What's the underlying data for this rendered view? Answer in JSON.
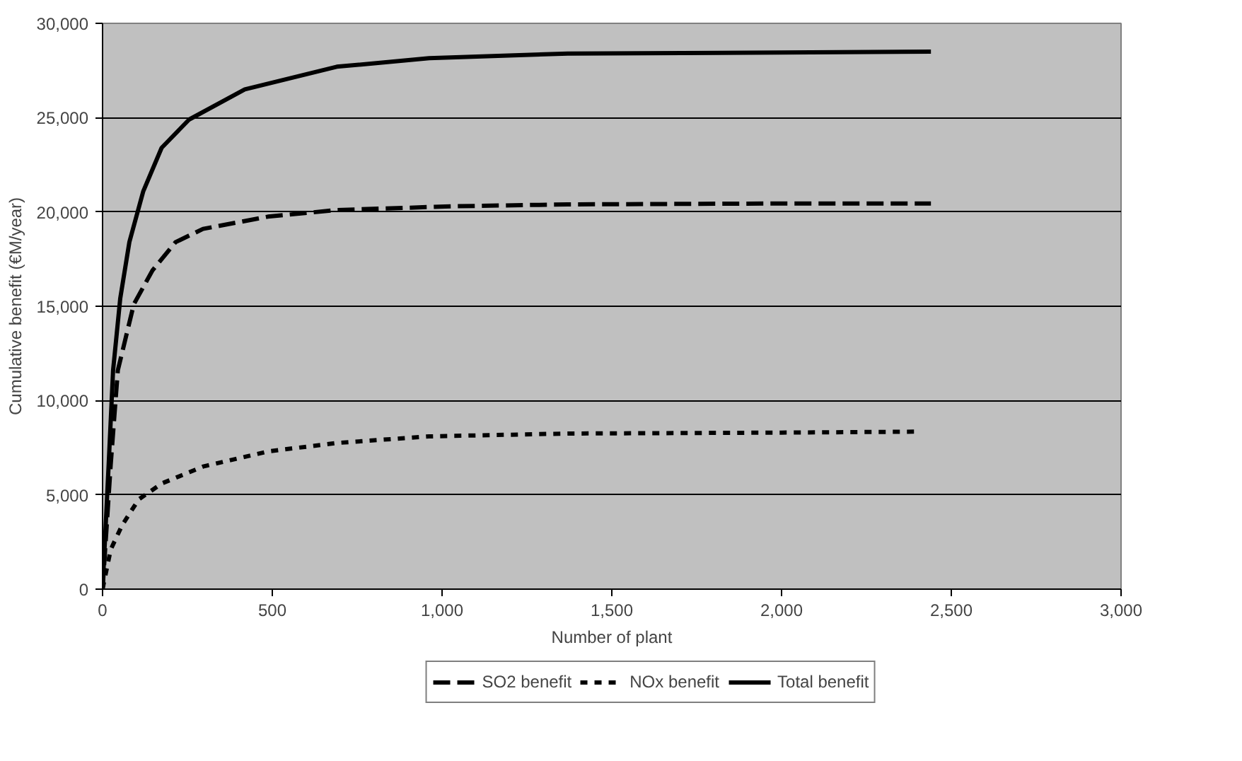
{
  "chart_data": {
    "type": "line",
    "xlabel": "Number of plant",
    "ylabel": "Cumulative benefit (€M/year)",
    "xlim": [
      0,
      3000
    ],
    "xticks": [
      {
        "value": 0,
        "label": "0"
      },
      {
        "value": 500,
        "label": "500"
      },
      {
        "value": 1000,
        "label": "1,000"
      },
      {
        "value": 1500,
        "label": "1,500"
      },
      {
        "value": 2000,
        "label": "2,000"
      },
      {
        "value": 2500,
        "label": "2,500"
      },
      {
        "value": 3000,
        "label": "3,000"
      }
    ],
    "ylim": [
      0,
      30000
    ],
    "yticks": [
      {
        "value": 0,
        "label": "0"
      },
      {
        "value": 5000,
        "label": "5,000"
      },
      {
        "value": 10000,
        "label": "10,000"
      },
      {
        "value": 15000,
        "label": "15,000"
      },
      {
        "value": 20000,
        "label": "20,000"
      },
      {
        "value": 25000,
        "label": "25,000"
      },
      {
        "value": 30000,
        "label": "30,000"
      }
    ],
    "grid": "y",
    "legend": "bottom",
    "series": [
      {
        "name": "SO2 benefit",
        "color": "#000000",
        "line_style": "dashed",
        "x": [
          0,
          24,
          45,
          92,
          147,
          215,
          296,
          487,
          690,
          1030,
          1370,
          2000,
          2440
        ],
        "values": [
          0,
          6600,
          11600,
          15100,
          16900,
          18400,
          19100,
          19750,
          20100,
          20300,
          20400,
          20450,
          20450
        ]
      },
      {
        "name": "NOx benefit",
        "color": "#000000",
        "line_style": "dotted",
        "x": [
          0,
          24,
          58,
          106,
          174,
          296,
          487,
          690,
          962,
          1370,
          2000,
          2400
        ],
        "values": [
          0,
          2100,
          3400,
          4750,
          5600,
          6500,
          7300,
          7750,
          8100,
          8250,
          8300,
          8350
        ]
      },
      {
        "name": "Total benefit",
        "color": "#000000",
        "line_style": "solid",
        "x": [
          0,
          18,
          31,
          52,
          79,
          120,
          174,
          255,
          419,
          690,
          962,
          1370,
          2000,
          2440
        ],
        "values": [
          0,
          6600,
          11600,
          15400,
          18400,
          21100,
          23400,
          24900,
          26500,
          27700,
          28150,
          28400,
          28450,
          28500
        ]
      }
    ]
  }
}
